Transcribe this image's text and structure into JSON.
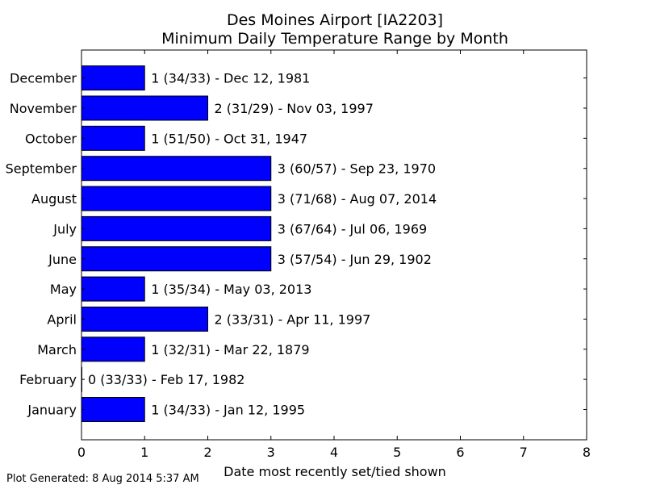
{
  "chart_data": {
    "type": "bar",
    "orientation": "horizontal",
    "title": "Des Moines Airport [IA2203]",
    "subtitle": "Minimum Daily Temperature Range by Month",
    "xlabel": "Date most recently set/tied shown",
    "ylabel": "",
    "xlim": [
      0,
      8
    ],
    "xticks": [
      "0",
      "1",
      "2",
      "3",
      "4",
      "5",
      "6",
      "7",
      "8"
    ],
    "grid": false,
    "bar_color": "#0000ff",
    "categories": [
      "January",
      "February",
      "March",
      "April",
      "May",
      "June",
      "July",
      "August",
      "September",
      "October",
      "November",
      "December"
    ],
    "values": [
      1,
      0,
      1,
      2,
      1,
      3,
      3,
      3,
      3,
      1,
      2,
      1
    ],
    "data_labels": [
      "1 (34/33) - Jan 12, 1995",
      "0 (33/33) - Feb 17, 1982",
      "1 (32/31) - Mar 22, 1879",
      "2 (33/31) - Apr 11, 1997",
      "1 (35/34) - May 03, 2013",
      "3 (57/54) - Jun 29, 1902",
      "3 (67/64) - Jul 06, 1969",
      "3 (71/68) - Aug 07, 2014",
      "3 (60/57) - Sep 23, 1970",
      "1 (51/50) - Oct 31, 1947",
      "2 (31/29) - Nov 03, 1997",
      "1 (34/33) - Dec 12, 1981"
    ],
    "footnote": "Plot Generated: 8 Aug 2014 5:37 AM"
  }
}
